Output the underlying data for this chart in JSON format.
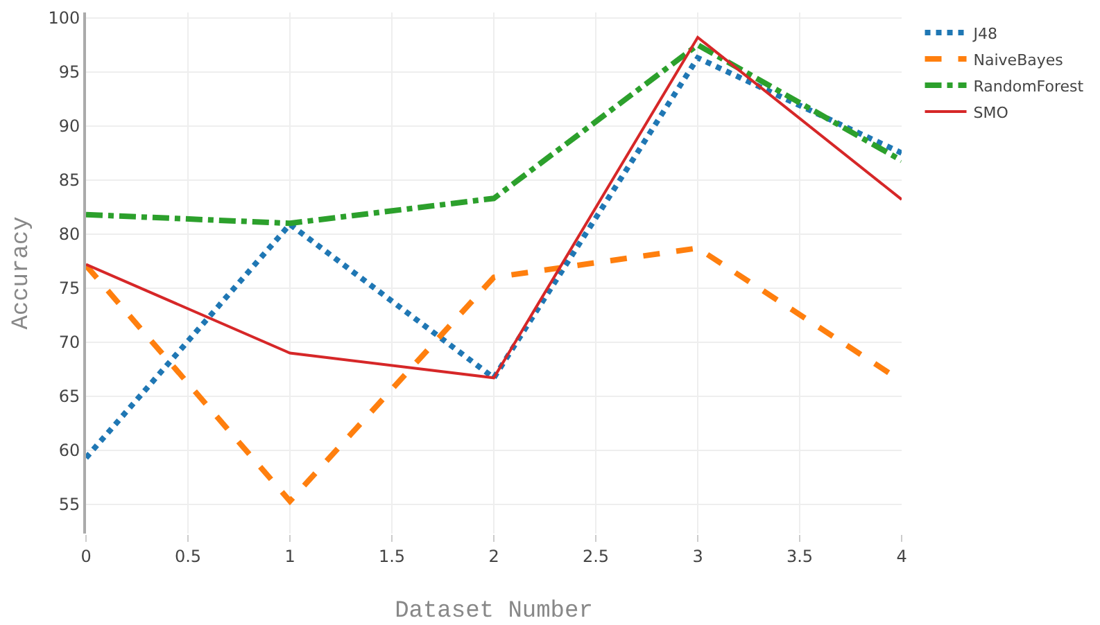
{
  "chart_data": {
    "type": "line",
    "xlabel": "Dataset Number",
    "ylabel": "Accuracy",
    "x": [
      0,
      1,
      2,
      3,
      4
    ],
    "series": [
      {
        "name": "J48",
        "color": "#1f77b4",
        "line_style": "dotted",
        "values": [
          59.3,
          80.9,
          66.7,
          96.3,
          87.5
        ]
      },
      {
        "name": "NaiveBayes",
        "color": "#ff7f0e",
        "line_style": "dashed",
        "values": [
          77.1,
          55.3,
          76.0,
          78.7,
          66.4
        ]
      },
      {
        "name": "RandomForest",
        "color": "#2ca02c",
        "line_style": "dashdot",
        "values": [
          81.8,
          81.0,
          83.3,
          97.5,
          86.8
        ]
      },
      {
        "name": "SMO",
        "color": "#d62728",
        "line_style": "solid",
        "values": [
          77.2,
          69.0,
          66.7,
          98.2,
          83.2
        ]
      }
    ],
    "xlim": [
      0,
      4
    ],
    "xticks": [
      0,
      0.5,
      1,
      1.5,
      2,
      2.5,
      3,
      3.5,
      4
    ],
    "ylim": [
      52.3,
      100.5
    ],
    "yticks": [
      55,
      60,
      65,
      70,
      75,
      80,
      85,
      90,
      95,
      100
    ],
    "grid": true,
    "legend": "top right",
    "marker": "none"
  }
}
